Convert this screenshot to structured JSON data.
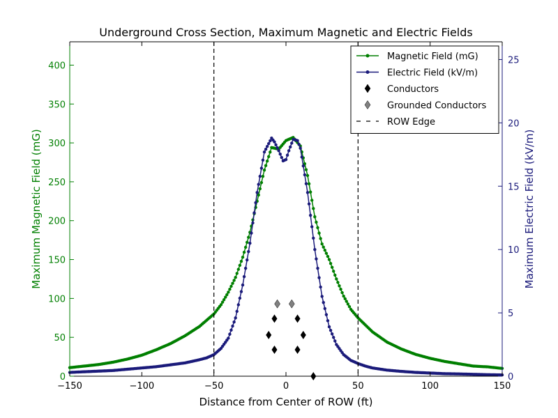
{
  "chart_data": {
    "type": "line",
    "title": "Underground Cross Section, Maximum Magnetic and Electric Fields",
    "xlabel": "Distance from Center of ROW (ft)",
    "ylabel_left": "Maximum Magnetic Field (mG)",
    "ylabel_right": "Maximum Electric Field (kV/m)",
    "xlim": [
      -150,
      150
    ],
    "ylim_left": [
      0,
      430
    ],
    "ylim_right": [
      0,
      26.4
    ],
    "x_ticks": [
      -150,
      -100,
      -50,
      0,
      50,
      100,
      150
    ],
    "x_tick_labels": [
      "−150",
      "−100",
      "−50",
      "0",
      "50",
      "100",
      "150"
    ],
    "y_left_ticks": [
      0,
      50,
      100,
      150,
      200,
      250,
      300,
      350,
      400
    ],
    "y_right_ticks": [
      0,
      5,
      10,
      15,
      20,
      25
    ],
    "grid": false,
    "legend_position": "top-right",
    "colors": {
      "magnetic": "#007f00",
      "electric": "#1a1a7a",
      "conductors": "#000000",
      "grounded": "#808080",
      "row_edge": "#000000"
    },
    "row_edges": [
      -50,
      50
    ],
    "series": [
      {
        "name": "Magnetic Field (mG)",
        "axis": "left",
        "x": [
          -150,
          -140,
          -130,
          -120,
          -110,
          -100,
          -90,
          -80,
          -70,
          -60,
          -50,
          -45,
          -40,
          -35,
          -30,
          -25,
          -20,
          -15,
          -10,
          -5,
          0,
          5,
          10,
          15,
          20,
          25,
          30,
          35,
          40,
          45,
          50,
          60,
          70,
          80,
          90,
          100,
          110,
          120,
          130,
          140,
          150
        ],
        "values": [
          11,
          13,
          15,
          18,
          22,
          27,
          34,
          42,
          52,
          64,
          80,
          92,
          108,
          127,
          153,
          185,
          225,
          265,
          294,
          292,
          303,
          307,
          296,
          258,
          205,
          170,
          150,
          125,
          103,
          86,
          75,
          57,
          44,
          35,
          28,
          23,
          19,
          16,
          13,
          12,
          10
        ]
      },
      {
        "name": "Electric Field (kV/m)",
        "axis": "right",
        "x": [
          -150,
          -140,
          -130,
          -120,
          -110,
          -100,
          -90,
          -80,
          -70,
          -60,
          -55,
          -50,
          -45,
          -40,
          -35,
          -30,
          -25,
          -20,
          -15,
          -10,
          -8,
          -5,
          -2,
          0,
          2,
          5,
          8,
          10,
          15,
          20,
          25,
          30,
          35,
          40,
          45,
          50,
          55,
          60,
          70,
          80,
          90,
          100,
          110,
          120,
          130,
          140,
          150
        ],
        "values": [
          0.3,
          0.35,
          0.4,
          0.45,
          0.55,
          0.65,
          0.75,
          0.9,
          1.05,
          1.3,
          1.45,
          1.7,
          2.2,
          3.0,
          4.6,
          7.2,
          10.5,
          14.5,
          17.7,
          18.8,
          18.5,
          17.8,
          17.0,
          17.1,
          17.8,
          18.7,
          18.6,
          18.0,
          14.5,
          10.0,
          6.3,
          3.9,
          2.5,
          1.7,
          1.25,
          1.0,
          0.8,
          0.65,
          0.48,
          0.38,
          0.3,
          0.25,
          0.2,
          0.18,
          0.15,
          0.12,
          0.1
        ]
      },
      {
        "name": "Conductors",
        "axis": "left",
        "marker": "diamond",
        "x": [
          -12,
          -8,
          -8,
          12,
          8,
          8,
          19
        ],
        "values": [
          53,
          74,
          34,
          53,
          74,
          34,
          0
        ]
      },
      {
        "name": "Grounded Conductors",
        "axis": "left",
        "marker": "diamond",
        "x": [
          -6,
          4
        ],
        "values": [
          93,
          93
        ]
      }
    ],
    "legend": [
      {
        "label": "Magnetic Field (mG)",
        "style": "line-marker",
        "color_key": "magnetic"
      },
      {
        "label": "Electric Field (kV/m)",
        "style": "line-marker",
        "color_key": "electric"
      },
      {
        "label": "Conductors",
        "style": "diamond",
        "color_key": "conductors"
      },
      {
        "label": "Grounded Conductors",
        "style": "diamond",
        "color_key": "grounded"
      },
      {
        "label": "ROW Edge",
        "style": "dashed",
        "color_key": "row_edge"
      }
    ]
  }
}
